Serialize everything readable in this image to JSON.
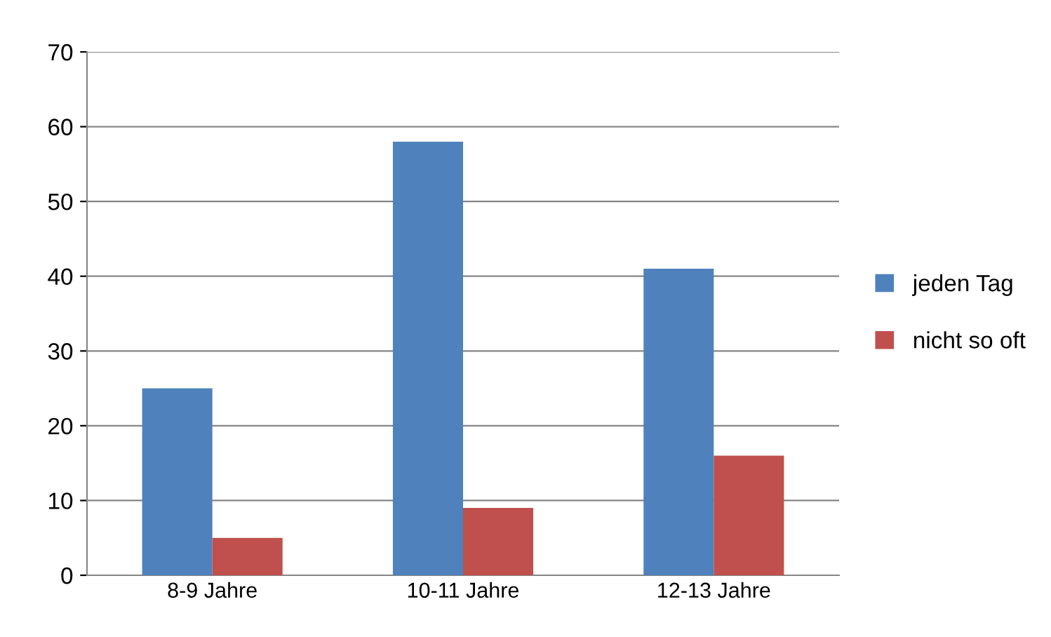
{
  "chart_data": {
    "type": "bar",
    "categories": [
      "8-9 Jahre",
      "10-11 Jahre",
      "12-13 Jahre"
    ],
    "series": [
      {
        "name": "jeden Tag",
        "color": "#4f81bd",
        "values": [
          25,
          58,
          41
        ]
      },
      {
        "name": "nicht so oft",
        "color": "#c0504d",
        "values": [
          5,
          9,
          16
        ]
      }
    ],
    "ylim": [
      0,
      70
    ],
    "yticks": [
      0,
      10,
      20,
      30,
      40,
      50,
      60,
      70
    ],
    "grid": "y",
    "legend": "right"
  }
}
